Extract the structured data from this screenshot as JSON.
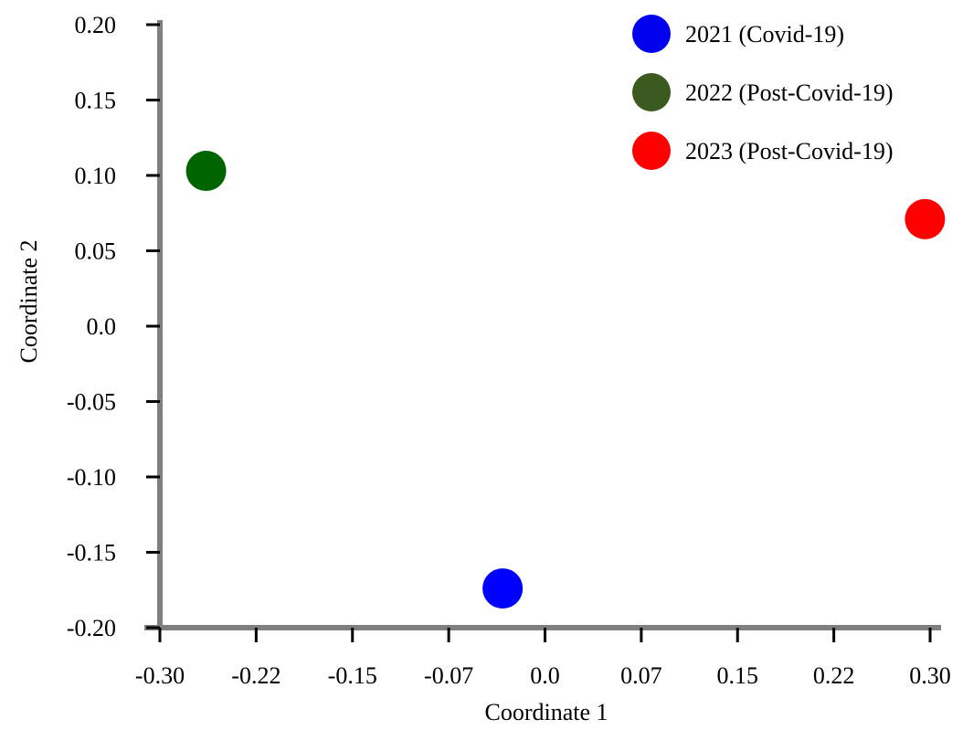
{
  "chart_data": {
    "type": "scatter",
    "title": "",
    "xlabel": "Coordinate 1",
    "ylabel": "Coordinate 2",
    "xlim": [
      -0.3,
      0.3
    ],
    "ylim": [
      -0.2,
      0.2
    ],
    "x_ticks": [
      -0.3,
      -0.225,
      -0.15,
      -0.075,
      0.0,
      0.075,
      0.15,
      0.225,
      0.3
    ],
    "x_tick_labels": [
      "-0.30",
      "-0.22",
      "-0.15",
      "-0.07",
      "0.0",
      "0.07",
      "0.15",
      "0.22",
      "0.30"
    ],
    "y_ticks": [
      0.2,
      0.15,
      0.1,
      0.05,
      0.0,
      -0.05,
      -0.1,
      -0.15,
      -0.2
    ],
    "y_tick_labels": [
      "0.20",
      "0.15",
      "0.10",
      "0.05",
      "0.0",
      "-0.05",
      "-0.10",
      "-0.15",
      "-0.20"
    ],
    "grid": false,
    "legend_position": "top-right",
    "series": [
      {
        "name": "2021 (Covid-19)",
        "color": "#0000ff",
        "legend_color": "#0000ee",
        "x": [
          -0.033
        ],
        "y": [
          -0.174
        ]
      },
      {
        "name": "2022 (Post-Covid-19)",
        "color": "#006400",
        "legend_color": "#3a5a1f",
        "x": [
          -0.264
        ],
        "y": [
          0.103
        ]
      },
      {
        "name": "2023 (Post-Covid-19)",
        "color": "#ff0000",
        "legend_color": "#ff0000",
        "x": [
          0.296
        ],
        "y": [
          0.071
        ]
      }
    ]
  }
}
